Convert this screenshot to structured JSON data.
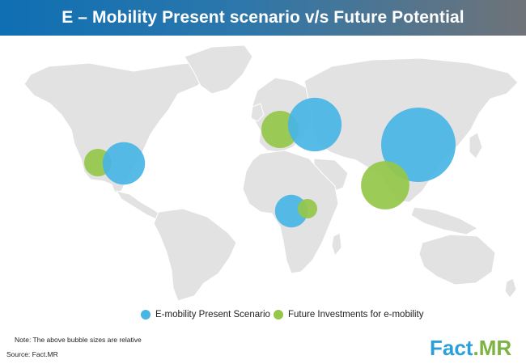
{
  "title": "E – Mobility Present scenario v/s Future Potential",
  "colors": {
    "present": "#48b5e5",
    "future": "#95c749",
    "land": "#e2e2e2",
    "land_stroke": "#ffffff",
    "title_bar_start": "#0f6fb3",
    "title_bar_end": "#6f7378"
  },
  "map": {
    "bubbles": [
      {
        "region": "North America",
        "series": "future",
        "relative_size": 0.37
      },
      {
        "region": "North America",
        "series": "present",
        "relative_size": 0.57
      },
      {
        "region": "Europe",
        "series": "future",
        "relative_size": 0.5
      },
      {
        "region": "Europe",
        "series": "present",
        "relative_size": 0.72
      },
      {
        "region": "China",
        "series": "present",
        "relative_size": 1.0
      },
      {
        "region": "India",
        "series": "future",
        "relative_size": 0.65
      },
      {
        "region": "Africa",
        "series": "present",
        "relative_size": 0.44
      },
      {
        "region": "Africa",
        "series": "future",
        "relative_size": 0.26
      }
    ]
  },
  "legend": {
    "present_label": "E-mobility Present Scenario",
    "future_label": "Future Investments for e-mobility"
  },
  "note": "Note: The above bubble sizes are relative",
  "source": "Source: Fact.MR",
  "logo": {
    "part1": "Fact",
    "part2": ".MR"
  }
}
